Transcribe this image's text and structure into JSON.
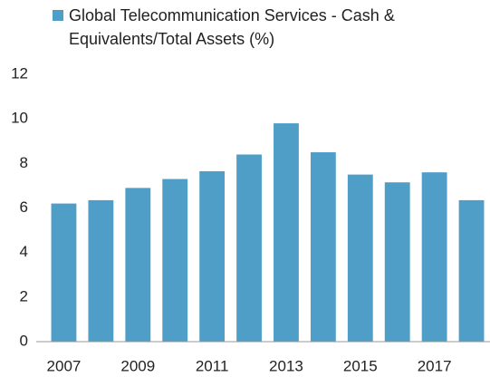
{
  "chart_data": {
    "type": "bar",
    "categories": [
      "2007",
      null,
      "2009",
      null,
      "2011",
      null,
      "2013",
      null,
      "2015",
      null,
      "2017",
      null
    ],
    "series": [
      {
        "name": "Global Telecommunication Services - Cash & Equivalents/Total Assets (%)",
        "color": "#4e9ec7",
        "values": [
          6.2,
          6.35,
          6.9,
          7.3,
          7.65,
          8.4,
          9.8,
          8.5,
          7.5,
          7.15,
          7.6,
          6.35
        ]
      }
    ],
    "ylim": [
      0,
      12
    ],
    "yticks": [
      0,
      2,
      4,
      6,
      8,
      10,
      12
    ],
    "grid": false
  }
}
